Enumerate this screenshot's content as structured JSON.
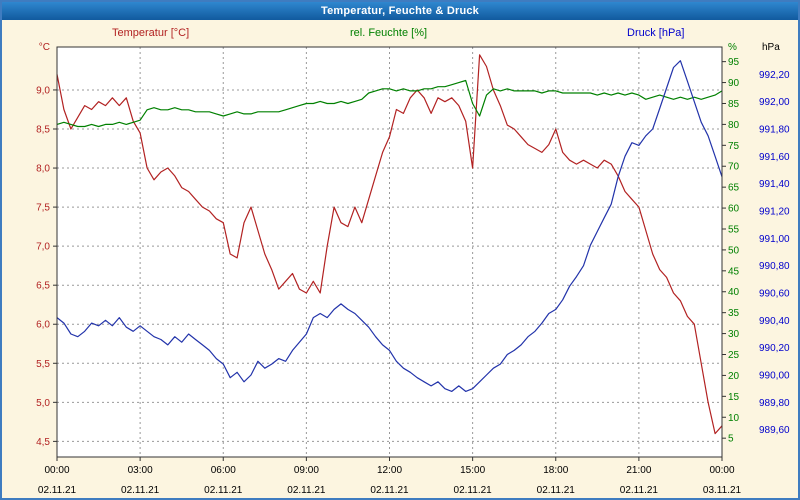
{
  "window": {
    "title": "Temperatur, Feuchte & Druck"
  },
  "colors": {
    "background": "#fcf5e0",
    "window_border": "#3f7cc0",
    "titlebar": "#1666ae",
    "grid": "#999999",
    "plot_border": "#333333",
    "temperature": "#b22222",
    "humidity": "#008000",
    "pressure_line": "#2233aa",
    "pressure_labels": "#0000cc"
  },
  "chart_data": {
    "type": "line",
    "title": "Temperatur, Feuchte & Druck",
    "x_start": 0,
    "x_end": 24,
    "x_step": 0.25,
    "x_unit": "hours",
    "grid": true,
    "series_headers": [
      {
        "label": "Temperatur [°C]",
        "color": "#b22222"
      },
      {
        "label": "rel. Feuchte [%]",
        "color": "#008000"
      },
      {
        "label": "Druck [hPa]",
        "color": "#0000cc"
      }
    ],
    "x_ticks": [
      {
        "h": 0,
        "time": "00:00",
        "date": "02.11.21"
      },
      {
        "h": 3,
        "time": "03:00",
        "date": "02.11.21"
      },
      {
        "h": 6,
        "time": "06:00",
        "date": "02.11.21"
      },
      {
        "h": 9,
        "time": "09:00",
        "date": "02.11.21"
      },
      {
        "h": 12,
        "time": "12:00",
        "date": "02.11.21"
      },
      {
        "h": 15,
        "time": "15:00",
        "date": "02.11.21"
      },
      {
        "h": 18,
        "time": "18:00",
        "date": "02.11.21"
      },
      {
        "h": 21,
        "time": "21:00",
        "date": "02.11.21"
      },
      {
        "h": 24,
        "time": "00:00",
        "date": "03.11.21"
      }
    ],
    "axes": {
      "temperature": {
        "unit": "°C",
        "unit_color": "#b22222",
        "color": "#b22222",
        "min": 4.3,
        "max": 9.55,
        "ticks": [
          9.0,
          8.5,
          8.0,
          7.5,
          7.0,
          6.5,
          6.0,
          5.5,
          5.0,
          4.5
        ],
        "tick_labels": [
          "9,0",
          "8,5",
          "8,0",
          "7,5",
          "7,0",
          "6,5",
          "6,0",
          "5,5",
          "5,0",
          "4,5"
        ]
      },
      "humidity": {
        "unit": "%",
        "unit_color": "#008000",
        "color": "#008000",
        "min": 0.5,
        "max": 98.5,
        "ticks": [
          95,
          90,
          85,
          80,
          75,
          70,
          65,
          60,
          55,
          50,
          45,
          40,
          35,
          30,
          25,
          20,
          15,
          10,
          5
        ],
        "tick_labels": [
          "95",
          "90",
          "85",
          "80",
          "75",
          "70",
          "65",
          "60",
          "55",
          "50",
          "45",
          "40",
          "35",
          "30",
          "25",
          "20",
          "15",
          "10",
          "5"
        ]
      },
      "pressure": {
        "unit": "hPa",
        "unit_color": "#000000",
        "color": "#0000cc",
        "min": 989.4,
        "max": 992.4,
        "ticks": [
          992.2,
          992.0,
          991.8,
          991.6,
          991.4,
          991.2,
          991.0,
          990.8,
          990.6,
          990.4,
          990.2,
          990.0,
          989.8,
          989.6
        ],
        "tick_labels": [
          "992,20",
          "992,00",
          "991,80",
          "991,60",
          "991,40",
          "991,20",
          "991,00",
          "990,80",
          "990,60",
          "990,40",
          "990,20",
          "990,00",
          "989,80",
          "989,60"
        ]
      }
    },
    "series": [
      {
        "name": "Temperatur",
        "axis": "temperature",
        "color": "#b22222",
        "values": [
          9.2,
          8.75,
          8.5,
          8.65,
          8.8,
          8.75,
          8.85,
          8.8,
          8.9,
          8.8,
          8.9,
          8.6,
          8.45,
          8.0,
          7.85,
          7.95,
          8.0,
          7.9,
          7.75,
          7.7,
          7.6,
          7.5,
          7.45,
          7.35,
          7.3,
          6.9,
          6.85,
          7.3,
          7.5,
          7.2,
          6.9,
          6.7,
          6.45,
          6.55,
          6.65,
          6.45,
          6.4,
          6.55,
          6.4,
          7.0,
          7.5,
          7.3,
          7.25,
          7.5,
          7.3,
          7.6,
          7.9,
          8.2,
          8.4,
          8.75,
          8.7,
          8.9,
          9.0,
          8.9,
          8.7,
          8.9,
          8.85,
          8.9,
          8.8,
          8.6,
          8.0,
          9.45,
          9.3,
          9.0,
          8.8,
          8.55,
          8.5,
          8.4,
          8.3,
          8.25,
          8.2,
          8.3,
          8.5,
          8.2,
          8.1,
          8.05,
          8.1,
          8.05,
          8.0,
          8.1,
          8.05,
          7.9,
          7.7,
          7.6,
          7.5,
          7.2,
          6.9,
          6.7,
          6.6,
          6.4,
          6.3,
          6.1,
          6.0,
          5.5,
          5.0,
          4.6,
          4.7
        ]
      },
      {
        "name": "rel. Feuchte",
        "axis": "humidity",
        "color": "#008000",
        "values": [
          80,
          80.5,
          80,
          79.5,
          79.5,
          80,
          79.5,
          80,
          80,
          80.5,
          80,
          80.5,
          81,
          83.5,
          84,
          83.5,
          83.5,
          84,
          83.5,
          83.5,
          83,
          83,
          83,
          82.5,
          82,
          82.5,
          83,
          82.5,
          82.5,
          83,
          83,
          83,
          83,
          83.5,
          84,
          84.5,
          85,
          85,
          85.5,
          85,
          85,
          85.5,
          85,
          85.5,
          86,
          87.5,
          88,
          88.5,
          88.5,
          88,
          88.5,
          88,
          88,
          88.5,
          88.5,
          89,
          89,
          89.5,
          90,
          90.5,
          85,
          82,
          87,
          88.5,
          88,
          88.5,
          88,
          88,
          88,
          88,
          87.5,
          88,
          88,
          87.5,
          87.5,
          87.5,
          87.5,
          87.5,
          87,
          87.5,
          87,
          87.5,
          87,
          87.5,
          87,
          86,
          86.5,
          87,
          86.5,
          86,
          86.5,
          86,
          86.5,
          86,
          86.5,
          87,
          88
        ]
      },
      {
        "name": "Druck",
        "axis": "pressure",
        "color": "#2233aa",
        "values": [
          990.42,
          990.38,
          990.3,
          990.28,
          990.32,
          990.38,
          990.36,
          990.4,
          990.36,
          990.42,
          990.35,
          990.32,
          990.36,
          990.32,
          990.28,
          990.26,
          990.22,
          990.28,
          990.24,
          990.3,
          990.26,
          990.22,
          990.18,
          990.12,
          990.08,
          989.98,
          990.02,
          989.95,
          990.0,
          990.1,
          990.05,
          990.08,
          990.12,
          990.1,
          990.18,
          990.24,
          990.3,
          990.42,
          990.45,
          990.42,
          990.48,
          990.52,
          990.48,
          990.45,
          990.4,
          990.35,
          990.28,
          990.22,
          990.18,
          990.1,
          990.05,
          990.02,
          989.98,
          989.95,
          989.92,
          989.95,
          989.9,
          989.88,
          989.92,
          989.88,
          989.9,
          989.95,
          990.0,
          990.05,
          990.08,
          990.15,
          990.18,
          990.22,
          990.28,
          990.32,
          990.38,
          990.45,
          990.48,
          990.55,
          990.65,
          990.72,
          990.8,
          990.95,
          991.05,
          991.15,
          991.25,
          991.45,
          991.6,
          991.7,
          991.68,
          991.75,
          991.8,
          991.95,
          992.1,
          992.25,
          992.3,
          992.15,
          992.0,
          991.85,
          991.75,
          991.6,
          991.45
        ]
      }
    ]
  }
}
